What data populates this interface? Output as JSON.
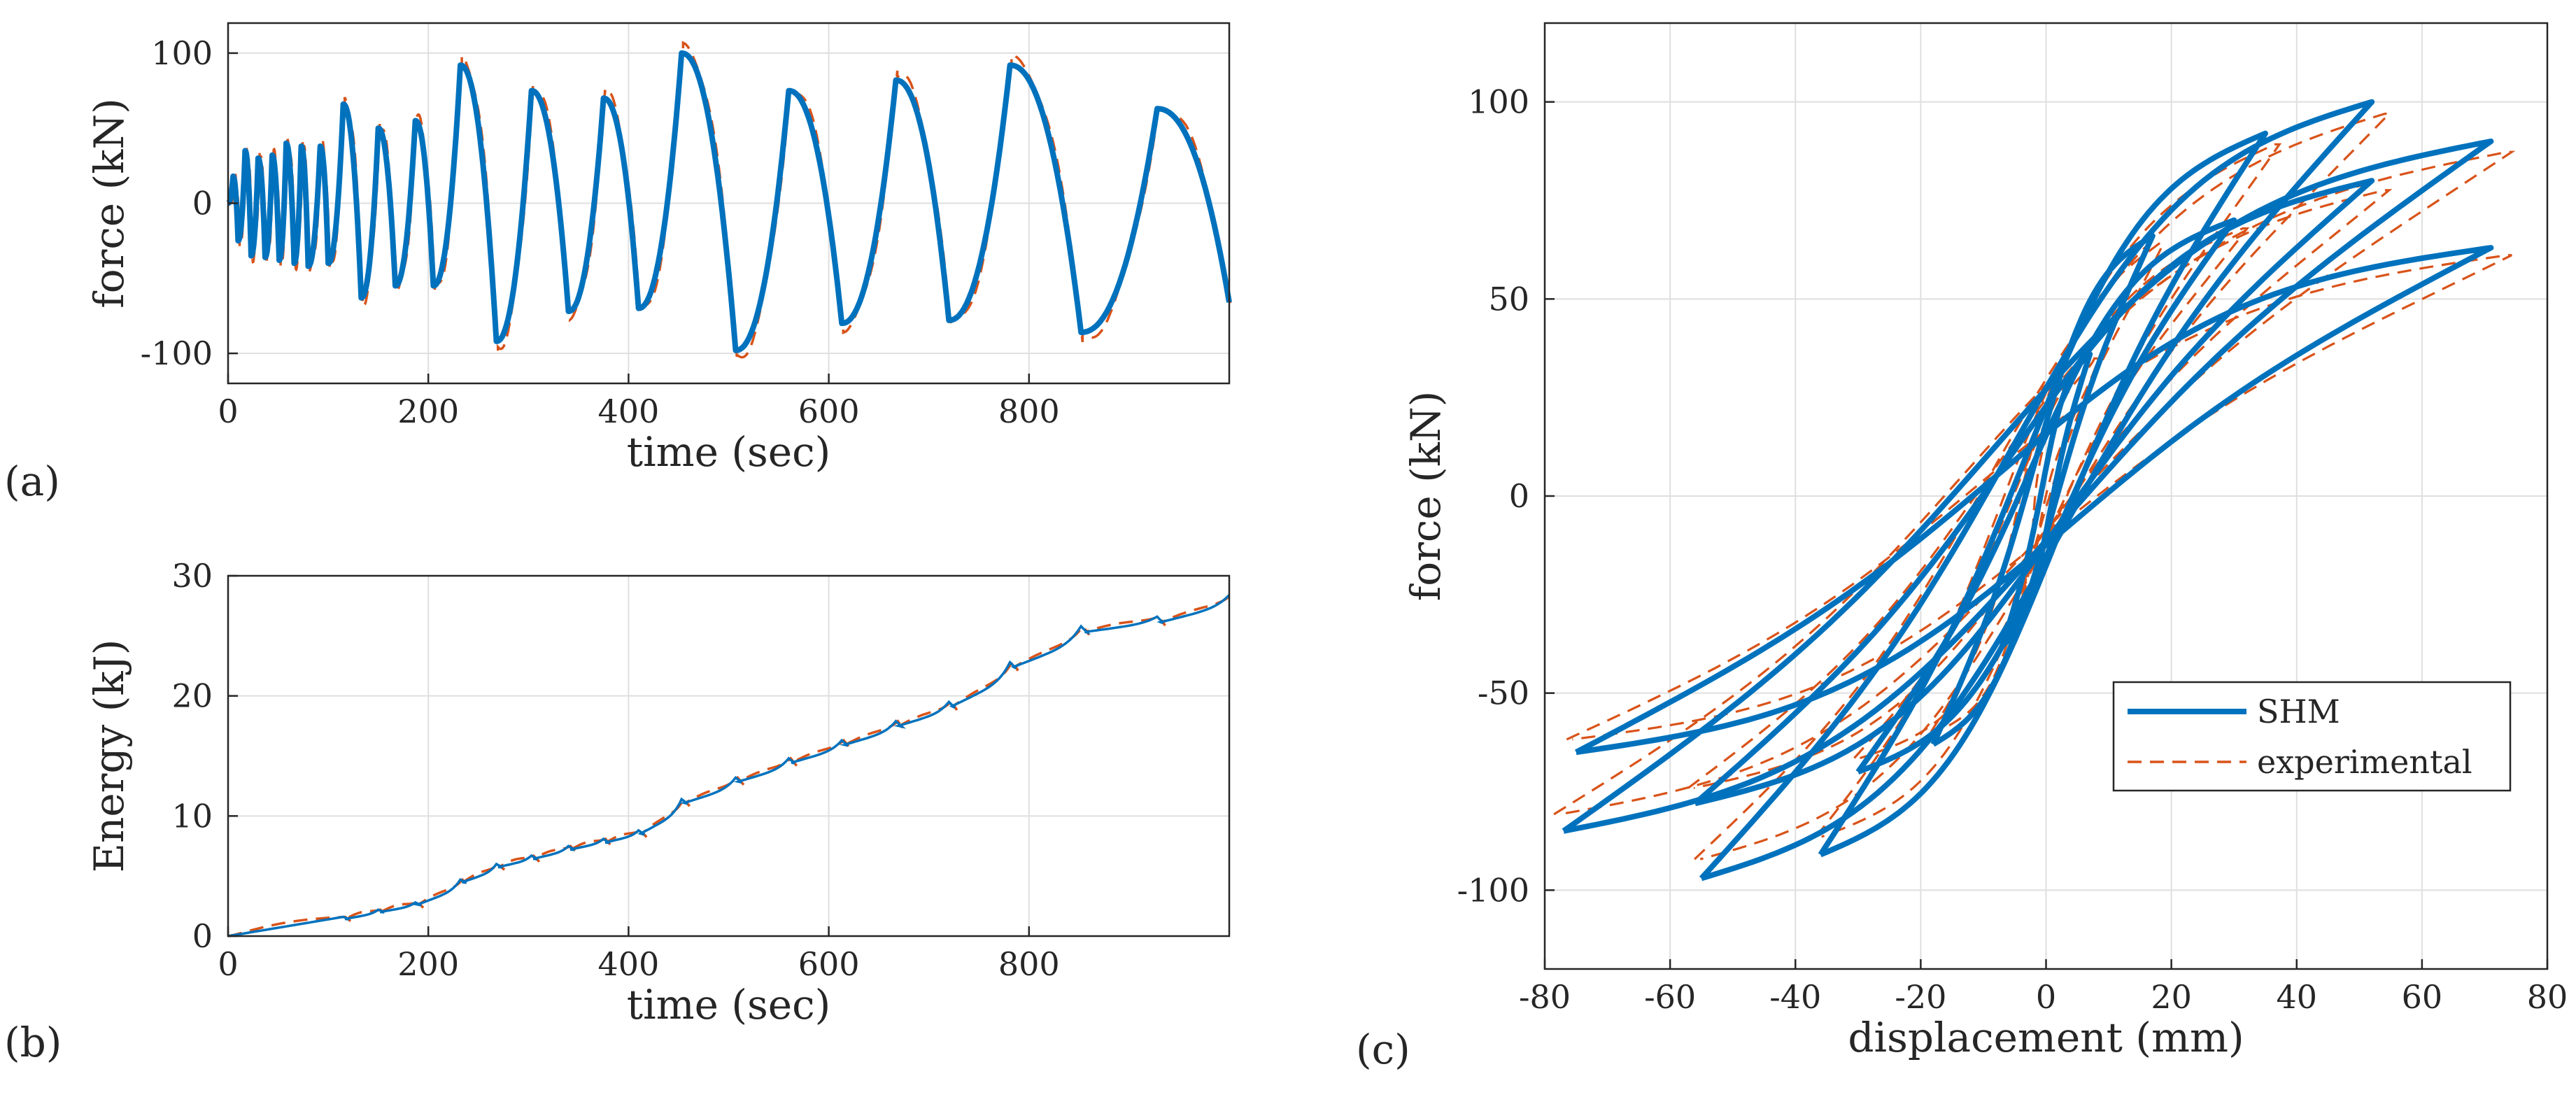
{
  "colors": {
    "shm": "#0072BD",
    "experimental": "#D95319",
    "grid": "#DFDFDF",
    "axis": "#262626"
  },
  "chart_data": [
    {
      "id": "a",
      "type": "line",
      "panel_label": "(a)",
      "xlabel": "time (sec)",
      "ylabel": "force (kN)",
      "xlim": [
        0,
        1000
      ],
      "ylim": [
        -120,
        120
      ],
      "xticks": [
        0,
        200,
        400,
        600,
        800
      ],
      "yticks": [
        -100,
        0,
        100
      ],
      "xtick_labels": [
        "0",
        "200",
        "400",
        "600",
        "800"
      ],
      "ytick_labels": [
        "-100",
        "0",
        "100"
      ],
      "grid": true,
      "peaks": [
        {
          "t": 0,
          "v": 0
        },
        {
          "t": 5,
          "v": 18
        },
        {
          "t": 10,
          "v": -25
        },
        {
          "t": 17,
          "v": 35
        },
        {
          "t": 23,
          "v": -35
        },
        {
          "t": 30,
          "v": 30
        },
        {
          "t": 37,
          "v": -36
        },
        {
          "t": 44,
          "v": 32
        },
        {
          "t": 51,
          "v": -38
        },
        {
          "t": 58,
          "v": 40
        },
        {
          "t": 66,
          "v": -40
        },
        {
          "t": 73,
          "v": 38
        },
        {
          "t": 80,
          "v": -42
        },
        {
          "t": 92,
          "v": 38
        },
        {
          "t": 100,
          "v": -40
        },
        {
          "t": 115,
          "v": 66
        },
        {
          "t": 133,
          "v": -63
        },
        {
          "t": 150,
          "v": 50
        },
        {
          "t": 167,
          "v": -55
        },
        {
          "t": 187,
          "v": 55
        },
        {
          "t": 205,
          "v": -55
        },
        {
          "t": 232,
          "v": 92
        },
        {
          "t": 268,
          "v": -92
        },
        {
          "t": 303,
          "v": 75
        },
        {
          "t": 340,
          "v": -72
        },
        {
          "t": 375,
          "v": 70
        },
        {
          "t": 410,
          "v": -70
        },
        {
          "t": 453,
          "v": 100
        },
        {
          "t": 507,
          "v": -98
        },
        {
          "t": 560,
          "v": 75
        },
        {
          "t": 613,
          "v": -80
        },
        {
          "t": 667,
          "v": 82
        },
        {
          "t": 720,
          "v": -78
        },
        {
          "t": 781,
          "v": 92
        },
        {
          "t": 852,
          "v": -86
        },
        {
          "t": 928,
          "v": 63
        },
        {
          "t": 1000,
          "v": -66
        }
      ],
      "series": [
        {
          "name": "SHM",
          "style": "solid"
        },
        {
          "name": "experimental",
          "style": "dashed"
        }
      ]
    },
    {
      "id": "b",
      "type": "line",
      "panel_label": "(b)",
      "xlabel": "time (sec)",
      "ylabel": "Energy (kJ)",
      "xlim": [
        0,
        1000
      ],
      "ylim": [
        0,
        30
      ],
      "xticks": [
        0,
        200,
        400,
        600,
        800
      ],
      "yticks": [
        0,
        10,
        20,
        30
      ],
      "xtick_labels": [
        "0",
        "200",
        "400",
        "600",
        "800"
      ],
      "ytick_labels": [
        "0",
        "10",
        "20",
        "30"
      ],
      "grid": true,
      "bumps": [
        {
          "t": 115,
          "v": 1.6
        },
        {
          "t": 150,
          "v": 2.2
        },
        {
          "t": 187,
          "v": 2.8
        },
        {
          "t": 232,
          "v": 4.7
        },
        {
          "t": 268,
          "v": 6.0
        },
        {
          "t": 303,
          "v": 6.7
        },
        {
          "t": 340,
          "v": 7.5
        },
        {
          "t": 375,
          "v": 8.1
        },
        {
          "t": 410,
          "v": 8.8
        },
        {
          "t": 453,
          "v": 11.4
        },
        {
          "t": 507,
          "v": 13.2
        },
        {
          "t": 560,
          "v": 14.8
        },
        {
          "t": 613,
          "v": 16.3
        },
        {
          "t": 667,
          "v": 17.9
        },
        {
          "t": 720,
          "v": 19.5
        },
        {
          "t": 781,
          "v": 22.8
        },
        {
          "t": 852,
          "v": 25.8
        },
        {
          "t": 928,
          "v": 26.6
        },
        {
          "t": 1000,
          "v": 28.4
        }
      ],
      "series": [
        {
          "name": "SHM",
          "style": "solid"
        },
        {
          "name": "experimental",
          "style": "dashed"
        }
      ]
    },
    {
      "id": "c",
      "type": "line",
      "panel_label": "(c)",
      "xlabel": "displacement (mm)",
      "ylabel": "force (kN)",
      "xlim": [
        -80,
        80
      ],
      "ylim": [
        -120,
        120
      ],
      "xticks": [
        -80,
        -60,
        -40,
        -20,
        0,
        20,
        40,
        60,
        80
      ],
      "yticks": [
        -100,
        -50,
        0,
        50,
        100
      ],
      "xtick_labels": [
        "-80",
        "-60",
        "-40",
        "-20",
        "0",
        "20",
        "40",
        "60",
        "80"
      ],
      "ytick_labels": [
        "-100",
        "-50",
        "0",
        "50",
        "100"
      ],
      "grid": true,
      "legend": {
        "position": "bottom-right",
        "entries": [
          "SHM",
          "experimental"
        ]
      },
      "loops": [
        {
          "dmax": 7,
          "fmax": 36,
          "dmin": -7,
          "fmin": -38
        },
        {
          "dmax": 17,
          "fmax": 66,
          "dmin": -18,
          "fmin": -63
        },
        {
          "dmax": 35,
          "fmax": 92,
          "dmin": -36,
          "fmin": -91
        },
        {
          "dmax": 52,
          "fmax": 100,
          "dmin": -55,
          "fmin": -97
        },
        {
          "dmax": 71,
          "fmax": 90,
          "dmin": -77,
          "fmin": -85
        },
        {
          "dmax": 52,
          "fmax": 80,
          "dmin": -56,
          "fmin": -78
        },
        {
          "dmax": 30,
          "fmax": 70,
          "dmin": -30,
          "fmin": -70
        },
        {
          "dmax": 71,
          "fmax": 63,
          "dmin": -75,
          "fmin": -65
        }
      ],
      "series": [
        {
          "name": "SHM",
          "style": "solid"
        },
        {
          "name": "experimental",
          "style": "dashed"
        }
      ]
    }
  ]
}
